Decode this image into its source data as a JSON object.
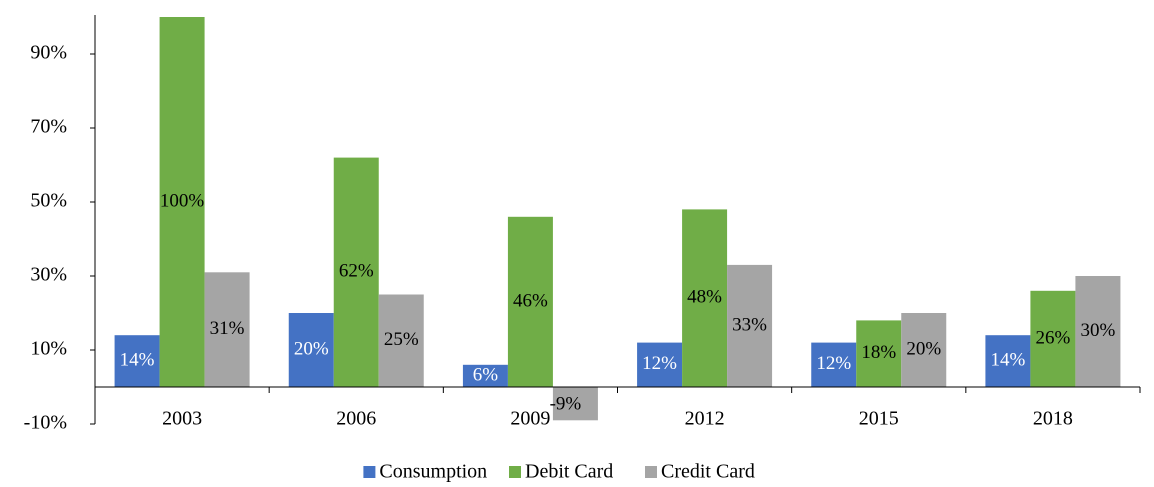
{
  "chart_data": {
    "type": "bar",
    "categories": [
      "2003",
      "2006",
      "2009",
      "2012",
      "2015",
      "2018"
    ],
    "series": [
      {
        "name": "Consumption",
        "color": "#4472c4",
        "values": [
          14,
          20,
          6,
          12,
          12,
          14
        ],
        "value_labels": [
          "14%",
          "20%",
          "6%",
          "12%",
          "12%",
          "14%"
        ]
      },
      {
        "name": "Debit Card",
        "color": "#70ad47",
        "values": [
          100,
          62,
          46,
          48,
          18,
          26
        ],
        "value_labels": [
          "100%",
          "62%",
          "46%",
          "48%",
          "18%",
          "26%"
        ]
      },
      {
        "name": "Credit Card",
        "color": "#a5a5a5",
        "values": [
          31,
          25,
          -9,
          33,
          20,
          30
        ],
        "value_labels": [
          "31%",
          "25%",
          "-9%",
          "33%",
          "20%",
          "30%"
        ]
      }
    ],
    "ylim": [
      -10,
      100
    ],
    "yticks": [
      {
        "value": -10,
        "label": "-10%"
      },
      {
        "value": 10,
        "label": "10%"
      },
      {
        "value": 30,
        "label": "30%"
      },
      {
        "value": 50,
        "label": "50%"
      },
      {
        "value": 70,
        "label": "70%"
      },
      {
        "value": 90,
        "label": "90%"
      }
    ],
    "legend": "bottom"
  }
}
